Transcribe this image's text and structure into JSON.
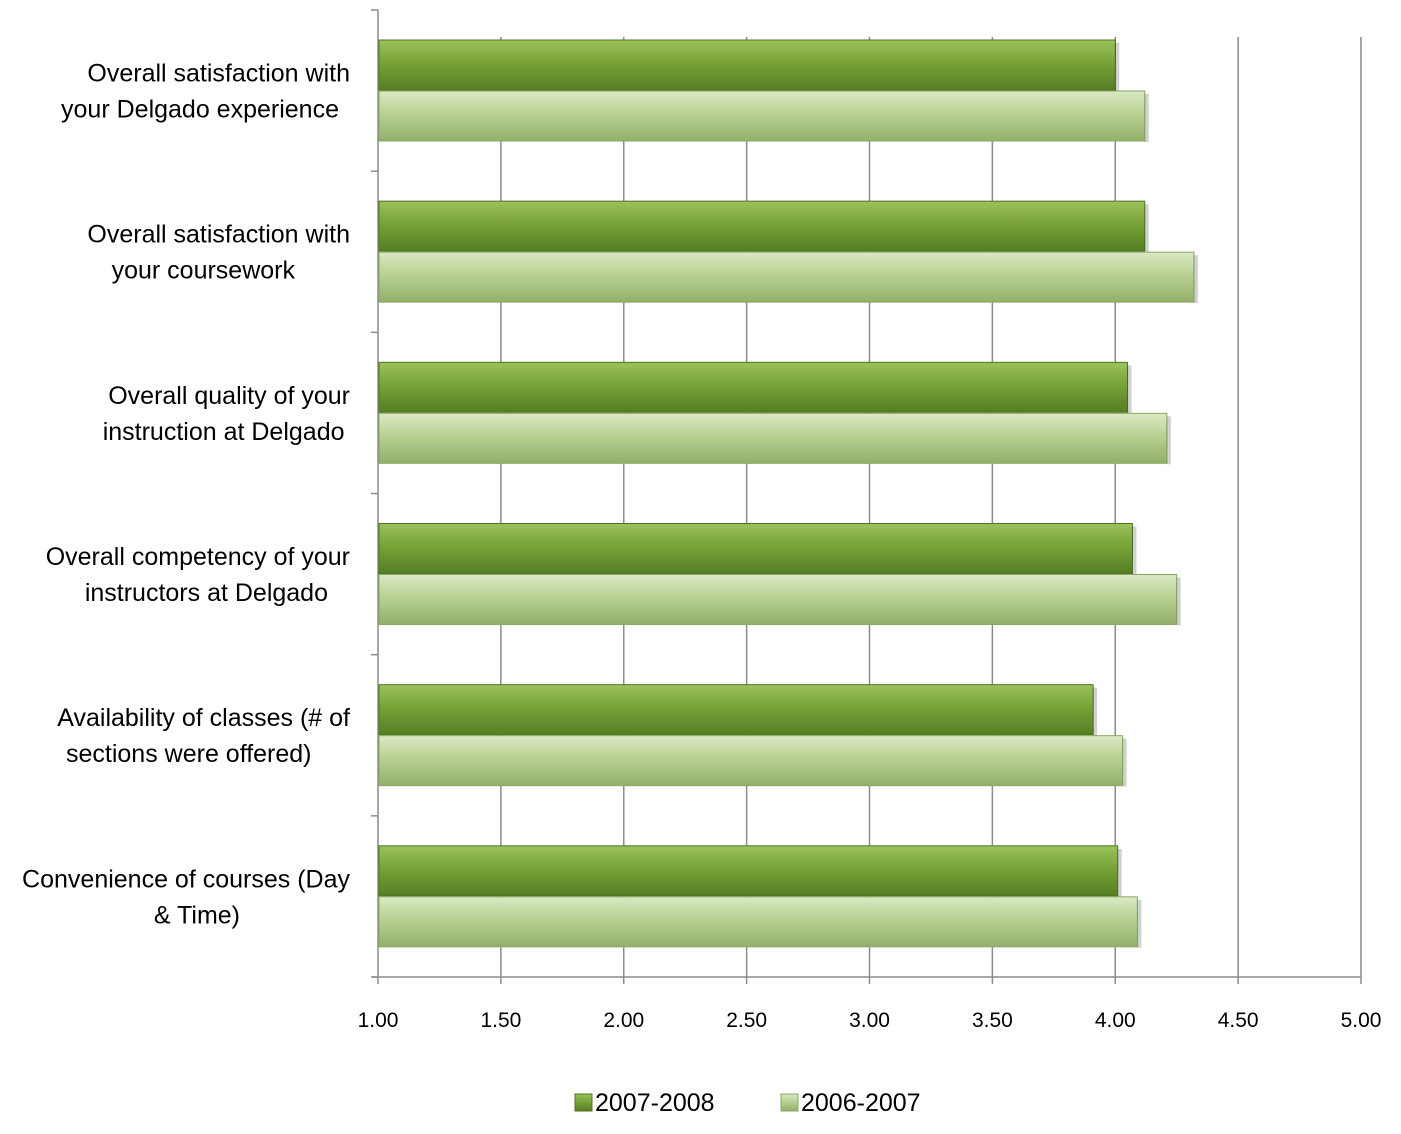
{
  "chart_data": {
    "type": "bar",
    "orientation": "horizontal",
    "categories": [
      [
        "Overall satisfaction with",
        "your Delgado experience"
      ],
      [
        "Overall satisfaction with",
        "your coursework"
      ],
      [
        "Overall quality of your",
        "instruction at Delgado"
      ],
      [
        "Overall competency of your",
        "instructors at Delgado"
      ],
      [
        "Availability of classes (# of",
        "sections were offered)"
      ],
      [
        "Convenience of courses (Day",
        "& Time)"
      ]
    ],
    "series": [
      {
        "name": "2007-2008",
        "values": [
          4.0,
          4.12,
          4.05,
          4.07,
          3.91,
          4.01
        ]
      },
      {
        "name": "2006-2007",
        "values": [
          4.12,
          4.32,
          4.21,
          4.25,
          4.03,
          4.09
        ]
      }
    ],
    "xlim": [
      1.0,
      5.0
    ],
    "x_ticks": [
      "1.00",
      "1.50",
      "2.00",
      "2.50",
      "3.00",
      "3.50",
      "4.00",
      "4.50",
      "5.00"
    ],
    "x_tick_values": [
      1.0,
      1.5,
      2.0,
      2.5,
      3.0,
      3.5,
      4.0,
      4.5,
      5.0
    ],
    "title": "",
    "xlabel": "",
    "ylabel": "",
    "grid": true,
    "legend_position": "bottom",
    "colors": {
      "series_dark": "#77a337",
      "series_dark_edge": "#4f7420",
      "series_light": "#b8d192",
      "series_light_edge": "#8aa864",
      "gridline": "#8c8c8c",
      "axis": "#8c8c8c"
    }
  }
}
